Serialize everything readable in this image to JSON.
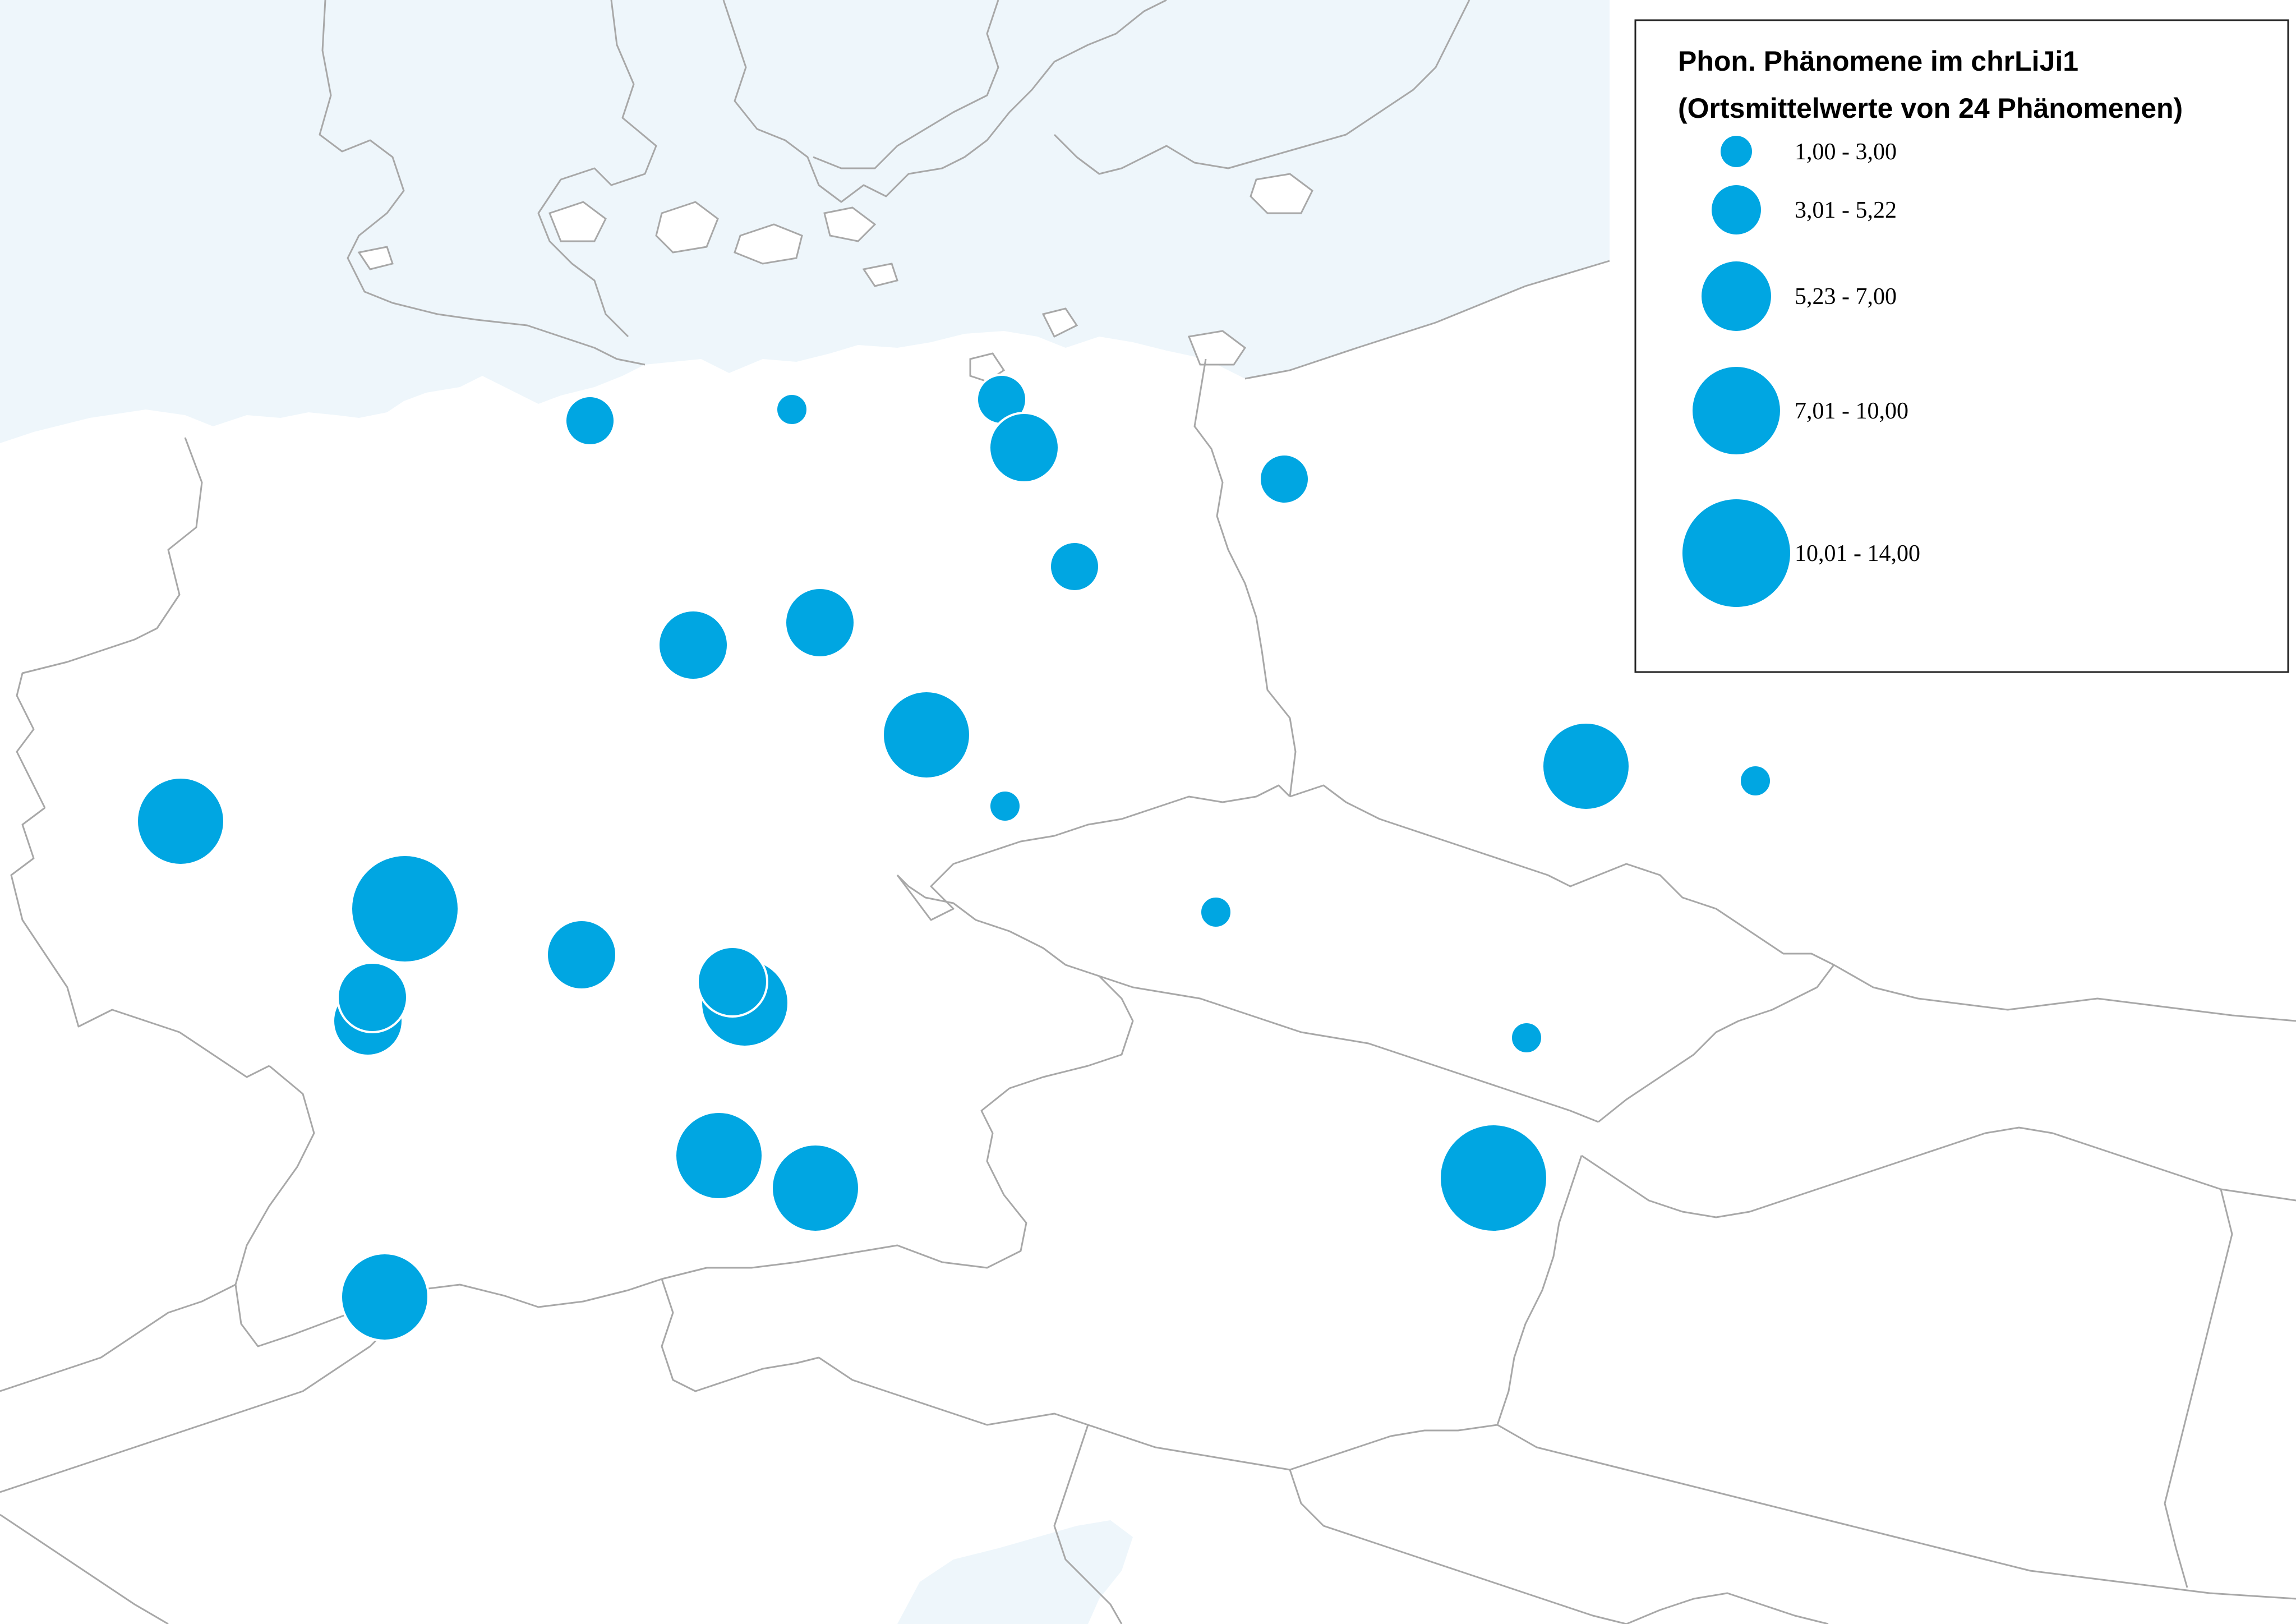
{
  "legend": {
    "title_line1": "Phon. Phänomene im chrLiJi1",
    "title_line2": "(Ortsmittelwerte von 24 Phänomenen)",
    "classes": [
      {
        "label": "1,00 - 3,00",
        "size_class": 1
      },
      {
        "label": "3,01 - 5,22",
        "size_class": 2
      },
      {
        "label": "5,23 - 7,00",
        "size_class": 3
      },
      {
        "label": "7,01 - 10,00",
        "size_class": 4
      },
      {
        "label": "10,01 - 14,00",
        "size_class": 5
      }
    ]
  },
  "colors": {
    "symbol": "#00a6e2",
    "sea": "#eef6fb",
    "boundary": "#a8a8a8"
  },
  "symbols": [
    {
      "size_class": 2
    },
    {
      "size_class": 1
    },
    {
      "size_class": 2
    },
    {
      "size_class": 3
    },
    {
      "size_class": 2
    },
    {
      "size_class": 2
    },
    {
      "size_class": 3
    },
    {
      "size_class": 3
    },
    {
      "size_class": 4
    },
    {
      "size_class": 1
    },
    {
      "size_class": 4
    },
    {
      "size_class": 1
    },
    {
      "size_class": 4
    },
    {
      "size_class": 5
    },
    {
      "size_class": 3
    },
    {
      "size_class": 4
    },
    {
      "size_class": 3
    },
    {
      "size_class": 3
    },
    {
      "size_class": 3
    },
    {
      "size_class": 1
    },
    {
      "size_class": 1
    },
    {
      "size_class": 4
    },
    {
      "size_class": 4
    },
    {
      "size_class": 5
    },
    {
      "size_class": 4
    }
  ]
}
